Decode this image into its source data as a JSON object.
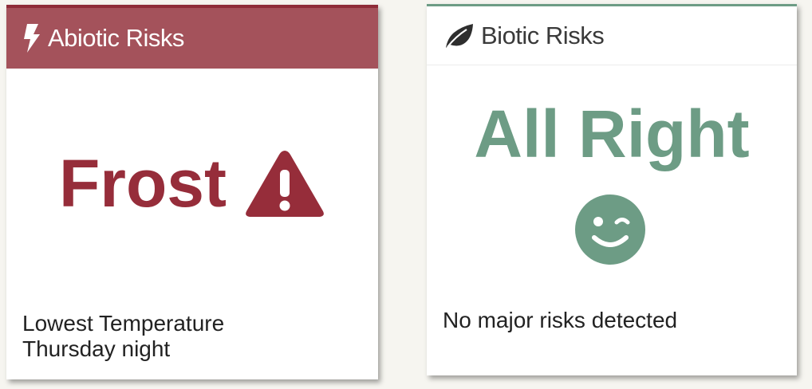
{
  "colors": {
    "abiotic_accent": "#962d3a",
    "abiotic_header_bg": "#a4525b",
    "biotic_accent": "#6d9c85"
  },
  "abiotic": {
    "title": "Abiotic Risks",
    "header_icon": "lightning-bolt-icon",
    "status": "Frost",
    "status_icon": "warning-triangle-icon",
    "detail_line1": "Lowest Temperature",
    "detail_line2": "Thursday night"
  },
  "biotic": {
    "title": "Biotic Risks",
    "header_icon": "leaf-icon",
    "status": "All Right",
    "status_icon": "wink-smiley-icon",
    "detail": "No major risks detected"
  }
}
